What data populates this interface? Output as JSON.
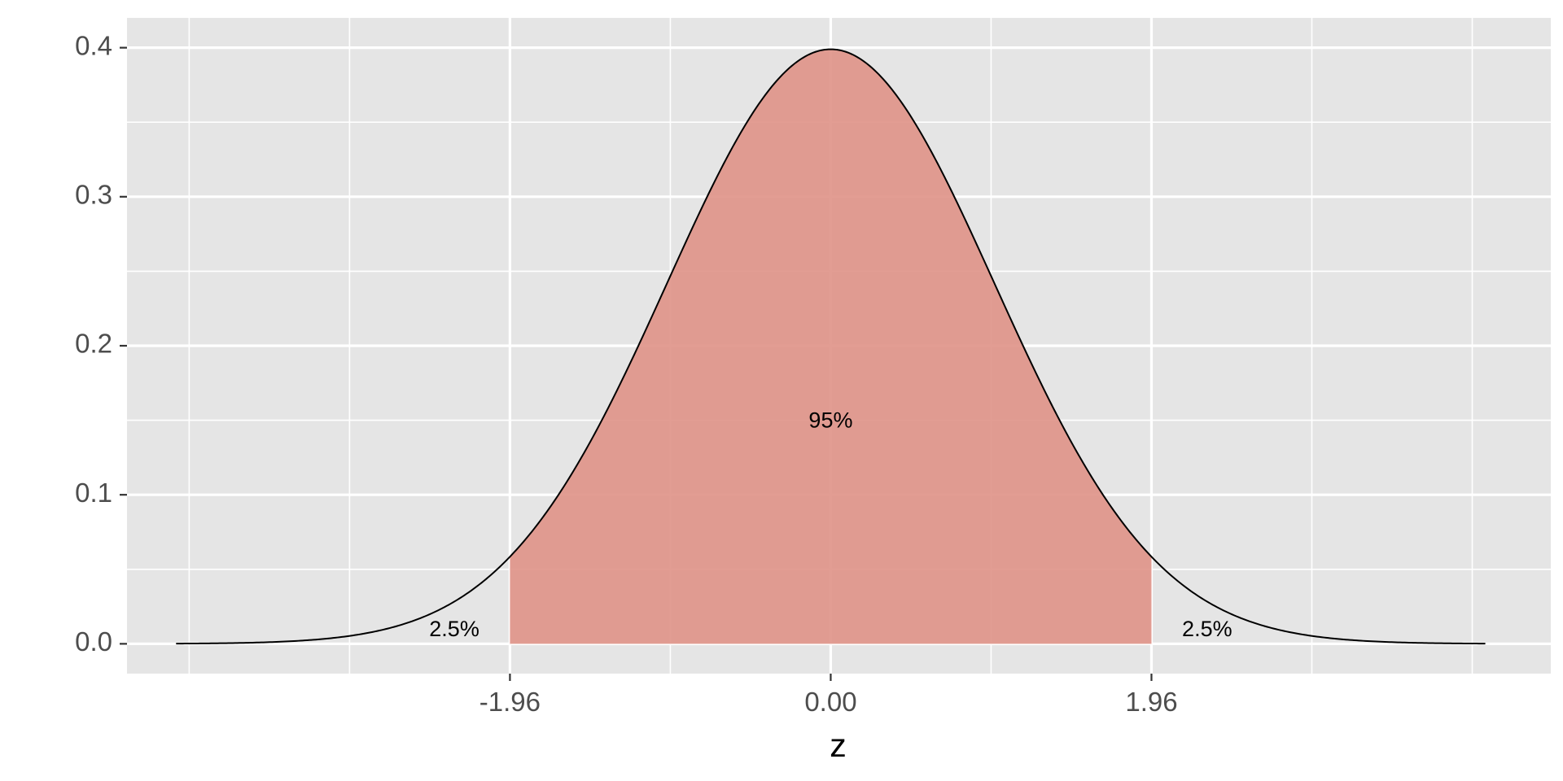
{
  "chart_data": {
    "type": "area",
    "title": "",
    "xlabel": "z",
    "ylabel": "",
    "xlim": [
      -4.3,
      4.4
    ],
    "ylim": [
      -0.02,
      0.42
    ],
    "x_ticks": [
      -1.96,
      0.0,
      1.96
    ],
    "x_tick_labels": [
      "-1.96",
      "0.00",
      "1.96"
    ],
    "x_minor_grid": [
      -3.92,
      -2.94,
      -0.98,
      0.98,
      2.94,
      3.92
    ],
    "y_ticks": [
      0.0,
      0.1,
      0.2,
      0.3,
      0.4
    ],
    "y_tick_labels": [
      "0.0",
      "0.1",
      "0.2",
      "0.3",
      "0.4"
    ],
    "y_minor_grid": [
      0.05,
      0.15,
      0.25,
      0.35
    ],
    "curve": {
      "function": "standard normal density",
      "x_range": [
        -4.0,
        4.0
      ],
      "line_color": "#000000"
    },
    "shaded_region": {
      "x_from": -1.96,
      "x_to": 1.96,
      "fill_color": "#e0958a"
    },
    "annotations": [
      {
        "label": "2.5%",
        "x": -2.3,
        "y": 0.009
      },
      {
        "label": "95%",
        "x": 0.0,
        "y": 0.149
      },
      {
        "label": "2.5%",
        "x": 2.3,
        "y": 0.009
      }
    ],
    "panel_background": "#e5e5e5",
    "grid": true,
    "grid_color": "#ffffff",
    "legend": "none"
  }
}
